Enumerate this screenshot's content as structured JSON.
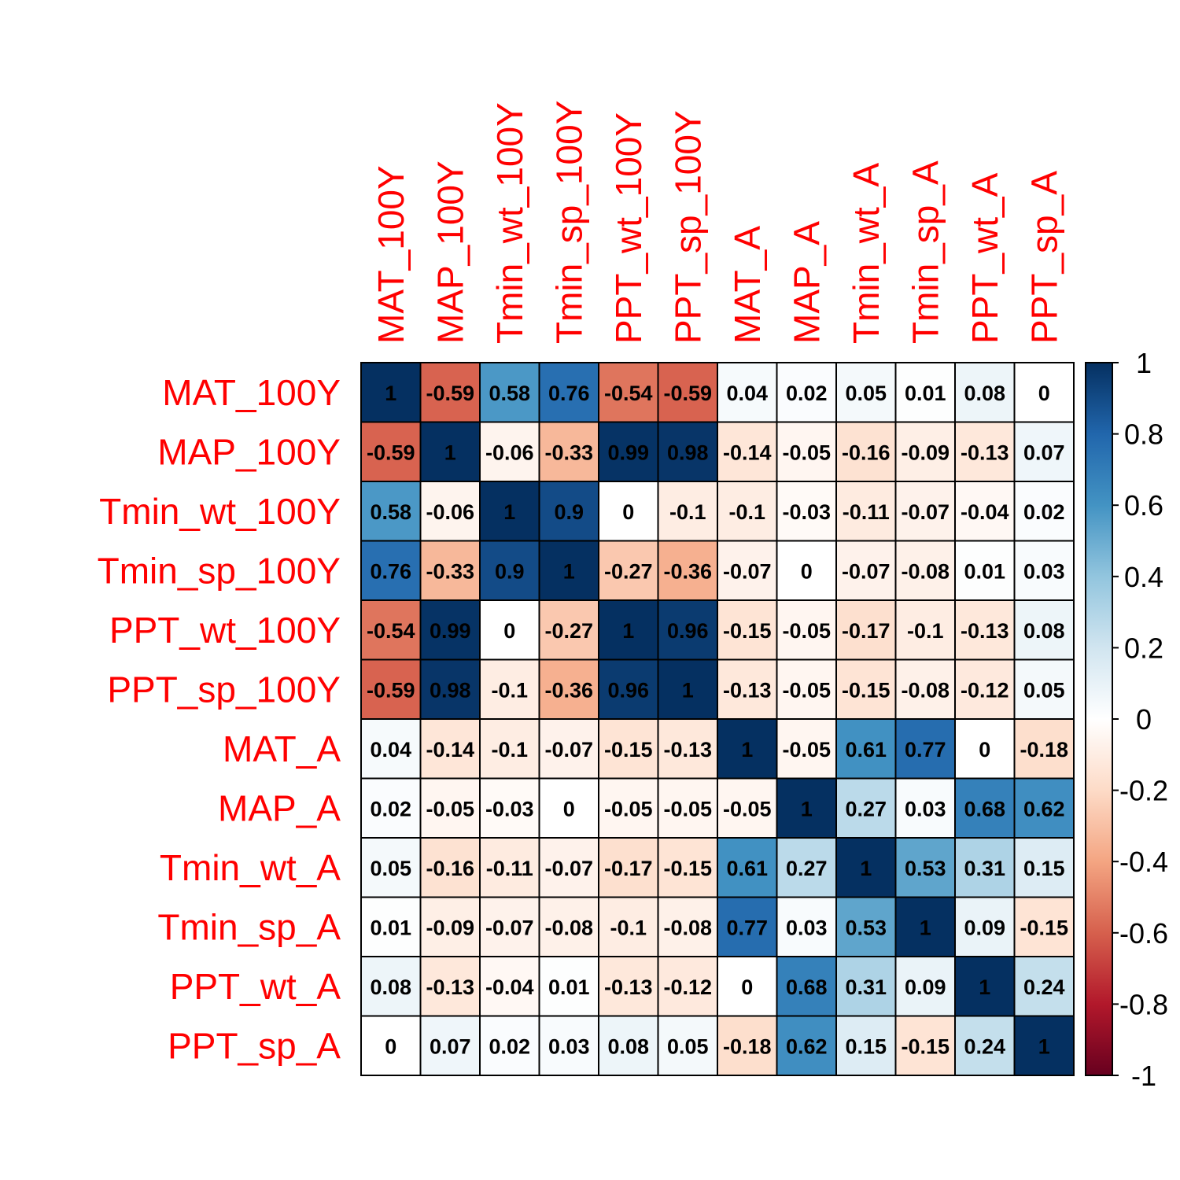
{
  "chart_data": {
    "type": "heatmap",
    "variables": [
      "MAT_100Y",
      "MAP_100Y",
      "Tmin_wt_100Y",
      "Tmin_sp_100Y",
      "PPT_wt_100Y",
      "PPT_sp_100Y",
      "MAT_A",
      "MAP_A",
      "Tmin_wt_A",
      "Tmin_sp_A",
      "PPT_wt_A",
      "PPT_sp_A"
    ],
    "matrix": [
      [
        1,
        -0.59,
        0.58,
        0.76,
        -0.54,
        -0.59,
        0.04,
        0.02,
        0.05,
        0.01,
        0.08,
        0
      ],
      [
        -0.59,
        1,
        -0.06,
        -0.33,
        0.99,
        0.98,
        -0.14,
        -0.05,
        -0.16,
        -0.09,
        -0.13,
        0.07
      ],
      [
        0.58,
        -0.06,
        1,
        0.9,
        0,
        -0.1,
        -0.1,
        -0.03,
        -0.11,
        -0.07,
        -0.04,
        0.02
      ],
      [
        0.76,
        -0.33,
        0.9,
        1,
        -0.27,
        -0.36,
        -0.07,
        0,
        -0.07,
        -0.08,
        0.01,
        0.03
      ],
      [
        -0.54,
        0.99,
        0,
        -0.27,
        1,
        0.96,
        -0.15,
        -0.05,
        -0.17,
        -0.1,
        -0.13,
        0.08
      ],
      [
        -0.59,
        0.98,
        -0.1,
        -0.36,
        0.96,
        1,
        -0.13,
        -0.05,
        -0.15,
        -0.08,
        -0.12,
        0.05
      ],
      [
        0.04,
        -0.14,
        -0.1,
        -0.07,
        -0.15,
        -0.13,
        1,
        -0.05,
        0.61,
        0.77,
        0,
        -0.18
      ],
      [
        0.02,
        -0.05,
        -0.03,
        0,
        -0.05,
        -0.05,
        -0.05,
        1,
        0.27,
        0.03,
        0.68,
        0.62
      ],
      [
        0.05,
        -0.16,
        -0.11,
        -0.07,
        -0.17,
        -0.15,
        0.61,
        0.27,
        1,
        0.53,
        0.31,
        0.15
      ],
      [
        0.01,
        -0.09,
        -0.07,
        -0.08,
        -0.1,
        -0.08,
        0.77,
        0.03,
        0.53,
        1,
        0.09,
        -0.15
      ],
      [
        0.08,
        -0.13,
        -0.04,
        0.01,
        -0.13,
        -0.12,
        0,
        0.68,
        0.31,
        0.09,
        1,
        0.24
      ],
      [
        0,
        0.07,
        0.02,
        0.03,
        0.08,
        0.05,
        -0.18,
        0.62,
        0.15,
        -0.15,
        0.24,
        1
      ]
    ],
    "color_scale": {
      "min": -1,
      "max": 1,
      "stops": [
        "#67001f",
        "#b2182b",
        "#d6604d",
        "#f4a582",
        "#fddbc7",
        "#ffffff",
        "#d1e5f0",
        "#92c5de",
        "#4393c3",
        "#2166ac",
        "#053061"
      ],
      "ticks": [
        1,
        0.8,
        0.6,
        0.4,
        0.2,
        0,
        -0.2,
        -0.4,
        -0.6,
        -0.8,
        -1
      ]
    },
    "label_color": "#ff0000",
    "legend_position": "right"
  }
}
